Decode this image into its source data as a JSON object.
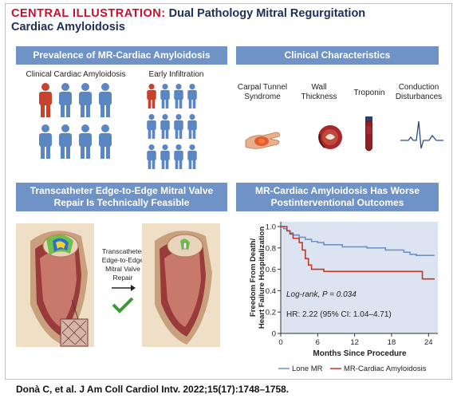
{
  "header": {
    "label": "CENTRAL ILLUSTRATION:",
    "title_line1": "Dual Pathology Mitral Regurgitation",
    "title_line2": "Cardiac Amyloidosis"
  },
  "prevalence": {
    "title": "Prevalence of MR-Cardiac Amyloidosis",
    "clinical_label": "Clinical Cardiac Amyloidosis",
    "early_label": "Early Infiltration",
    "clinical_highlighted": 1,
    "clinical_total": 8,
    "early_highlighted": 1,
    "early_total": 12
  },
  "clinical": {
    "title": "Clinical Characteristics",
    "items": [
      {
        "line1": "Carpal Tunnel",
        "line2": "Syndrome"
      },
      {
        "line1": "Wall",
        "line2": "Thickness"
      },
      {
        "line1": "Troponin",
        "line2": ""
      },
      {
        "line1": "Conduction",
        "line2": "Disturbances"
      }
    ]
  },
  "teer": {
    "title_line1": "Transcatheter Edge-to-Edge Mitral Valve",
    "title_line2": "Repair Is Technically Feasible",
    "arrow_lines": [
      "Transcatheter",
      "Edge-to-Edge",
      "Mitral Valve",
      "Repair"
    ]
  },
  "outcomes": {
    "title_line1": "MR-Cardiac Amyloidosis Has Worse",
    "title_line2": "Postinterventional Outcomes",
    "logrank_label": "Log-rank,",
    "logrank_p": "P = 0.034",
    "hr_text": "HR: 2.22 (95% CI: 1.04–4.71)"
  },
  "chart_data": {
    "type": "line",
    "title": "",
    "xlabel": "Months Since Procedure",
    "ylabel": "Freedom From Death/ Heart Failure Hospitalization",
    "ylabel_lines": [
      "Freedom From Death/",
      "Heart Failure Hospitalization"
    ],
    "xlim": [
      0,
      25
    ],
    "ylim": [
      0,
      1.0
    ],
    "xticks": [
      0,
      6,
      12,
      18,
      24
    ],
    "yticks": [
      0,
      0.2,
      0.4,
      0.6,
      0.8,
      1.0
    ],
    "xtick_labels": [
      "0",
      "6",
      "12",
      "18",
      "24"
    ],
    "ytick_labels": [
      "0",
      "0.2",
      "0.4",
      "0.6",
      "0.8",
      "1.0"
    ],
    "legend_position": "bottom",
    "grid": false,
    "series": [
      {
        "name": "Lone MR",
        "color": "#6f92c7",
        "points": [
          [
            0,
            1.0
          ],
          [
            0.5,
            0.98
          ],
          [
            1,
            0.96
          ],
          [
            1.5,
            0.94
          ],
          [
            2,
            0.92
          ],
          [
            3,
            0.9
          ],
          [
            4,
            0.88
          ],
          [
            5,
            0.86
          ],
          [
            6,
            0.85
          ],
          [
            7,
            0.83
          ],
          [
            9,
            0.83
          ],
          [
            10,
            0.81
          ],
          [
            13,
            0.81
          ],
          [
            14,
            0.8
          ],
          [
            16,
            0.8
          ],
          [
            17,
            0.78
          ],
          [
            19,
            0.78
          ],
          [
            20,
            0.76
          ],
          [
            21,
            0.74
          ],
          [
            22,
            0.73
          ],
          [
            25,
            0.73
          ]
        ]
      },
      {
        "name": "MR-Cardiac Amyloidosis",
        "color": "#c0392b",
        "points": [
          [
            0,
            1.0
          ],
          [
            1,
            0.96
          ],
          [
            1.5,
            0.93
          ],
          [
            2,
            0.89
          ],
          [
            3,
            0.85
          ],
          [
            3.5,
            0.78
          ],
          [
            4,
            0.7
          ],
          [
            4.5,
            0.64
          ],
          [
            5,
            0.6
          ],
          [
            6,
            0.6
          ],
          [
            7,
            0.58
          ],
          [
            18,
            0.58
          ],
          [
            22,
            0.58
          ],
          [
            23,
            0.51
          ],
          [
            25,
            0.51
          ]
        ]
      }
    ]
  },
  "citation": "Donà C, et al. J Am Coll Cardiol Intv. 2022;15(17):1748–1758."
}
